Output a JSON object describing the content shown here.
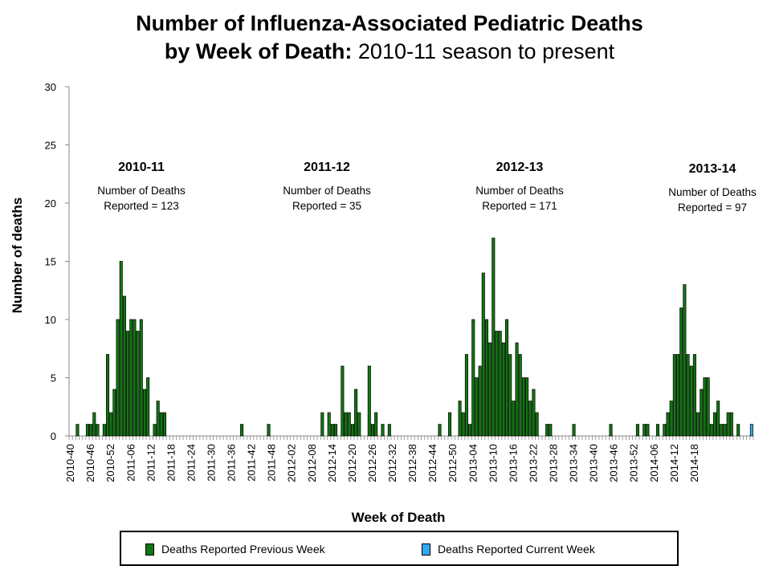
{
  "title": {
    "line1": "Number of Influenza-Associated Pediatric Deaths",
    "line2_bold": "by Week of Death:",
    "line2_rest": " 2010-11 season to present"
  },
  "colors": {
    "previous_week": "#117711",
    "current_week": "#33aaee"
  },
  "chart_data": {
    "type": "bar",
    "title": "Number of Influenza-Associated Pediatric Deaths by Week of Death: 2010-11 season to present",
    "xlabel": "Week of Death",
    "ylabel": "Number of deaths",
    "ylim": [
      0,
      30
    ],
    "yticks": [
      0,
      5,
      10,
      15,
      20,
      25,
      30
    ],
    "grid": false,
    "legend_position": "bottom",
    "x_tick_labels": [
      "2010-40",
      "2010-46",
      "2010-52",
      "2011-06",
      "2011-12",
      "2011-18",
      "2011-24",
      "2011-30",
      "2011-36",
      "2011-42",
      "2011-48",
      "2012-02",
      "2012-08",
      "2012-14",
      "2012-20",
      "2012-26",
      "2012-32",
      "2012-38",
      "2012-44",
      "2012-50",
      "2013-04",
      "2013-10",
      "2013-16",
      "2013-22",
      "2013-28",
      "2013-34",
      "2013-40",
      "2013-46",
      "2013-52",
      "2014-06",
      "2014-12",
      "2014-18"
    ],
    "series": [
      {
        "name": "Deaths Reported Previous Week",
        "values": [
          0,
          0,
          1,
          0,
          0,
          1,
          1,
          2,
          1,
          0,
          1,
          7,
          2,
          4,
          10,
          15,
          12,
          9,
          10,
          10,
          9,
          10,
          4,
          5,
          0,
          1,
          3,
          2,
          2,
          0,
          0,
          0,
          0,
          0,
          0,
          0,
          0,
          0,
          0,
          0,
          0,
          0,
          0,
          0,
          0,
          0,
          0,
          0,
          0,
          0,
          0,
          1,
          0,
          0,
          0,
          0,
          0,
          0,
          0,
          1,
          0,
          0,
          0,
          0,
          0,
          0,
          0,
          0,
          0,
          0,
          0,
          0,
          0,
          0,
          0,
          2,
          0,
          2,
          1,
          1,
          0,
          6,
          2,
          2,
          1,
          4,
          2,
          0,
          0,
          6,
          1,
          2,
          0,
          1,
          0,
          1,
          0,
          0,
          0,
          0,
          0,
          0,
          0,
          0,
          0,
          0,
          0,
          0,
          0,
          0,
          1,
          0,
          0,
          2,
          0,
          0,
          3,
          2,
          7,
          1,
          10,
          5,
          6,
          14,
          10,
          8,
          17,
          9,
          9,
          8,
          10,
          7,
          3,
          8,
          7,
          5,
          5,
          3,
          4,
          2,
          0,
          0,
          1,
          1,
          0,
          0,
          0,
          0,
          0,
          0,
          1,
          0,
          0,
          0,
          0,
          0,
          0,
          0,
          0,
          0,
          0,
          1,
          0,
          0,
          0,
          0,
          0,
          0,
          0,
          1,
          0,
          1,
          1,
          0,
          0,
          1,
          0,
          1,
          2,
          3,
          7,
          7,
          11,
          13,
          7,
          6,
          7,
          2,
          4,
          5,
          5,
          1,
          2,
          3,
          1,
          1,
          2,
          2,
          0,
          1,
          0,
          0,
          0,
          0
        ]
      },
      {
        "name": "Deaths Reported Current Week",
        "values": [
          0,
          0,
          0,
          0,
          0,
          0,
          0,
          0,
          0,
          0,
          0,
          0,
          0,
          0,
          0,
          0,
          0,
          0,
          0,
          0,
          0,
          0,
          0,
          0,
          0,
          0,
          0,
          0,
          0,
          0,
          0,
          0,
          0,
          0,
          0,
          0,
          0,
          0,
          0,
          0,
          0,
          0,
          0,
          0,
          0,
          0,
          0,
          0,
          0,
          0,
          0,
          0,
          0,
          0,
          0,
          0,
          0,
          0,
          0,
          0,
          0,
          0,
          0,
          0,
          0,
          0,
          0,
          0,
          0,
          0,
          0,
          0,
          0,
          0,
          0,
          0,
          0,
          0,
          0,
          0,
          0,
          0,
          0,
          0,
          0,
          0,
          0,
          0,
          0,
          0,
          0,
          0,
          0,
          0,
          0,
          0,
          0,
          0,
          0,
          0,
          0,
          0,
          0,
          0,
          0,
          0,
          0,
          0,
          0,
          0,
          0,
          0,
          0,
          0,
          0,
          0,
          0,
          0,
          0,
          0,
          0,
          0,
          0,
          0,
          0,
          0,
          0,
          0,
          0,
          0,
          0,
          0,
          0,
          0,
          0,
          0,
          0,
          0,
          0,
          0,
          0,
          0,
          0,
          0,
          0,
          0,
          0,
          0,
          0,
          0,
          0,
          0,
          0,
          0,
          0,
          0,
          0,
          0,
          0,
          0,
          0,
          0,
          0,
          0,
          0,
          0,
          0,
          0,
          0,
          0,
          0,
          0,
          0,
          0,
          0,
          0,
          0,
          0,
          0,
          0,
          0,
          0,
          0,
          0,
          0,
          0,
          0,
          0,
          0,
          0,
          0,
          0,
          0,
          0,
          0,
          0,
          0,
          0,
          0,
          0,
          0,
          0,
          0,
          1
        ]
      }
    ],
    "annotations": [
      {
        "season": "2010-11",
        "line1": "Number of Deaths",
        "line2": "Reported = 123"
      },
      {
        "season": "2011-12",
        "line1": "Number of Deaths",
        "line2": "Reported = 35"
      },
      {
        "season": "2012-13",
        "line1": "Number of Deaths",
        "line2": "Reported = 171"
      },
      {
        "season": "2013-14",
        "line1": "Number of Deaths",
        "line2": "Reported = 97"
      }
    ]
  },
  "legend": {
    "previous_label": "Deaths Reported Previous Week",
    "current_label": "Deaths Reported Current Week"
  }
}
